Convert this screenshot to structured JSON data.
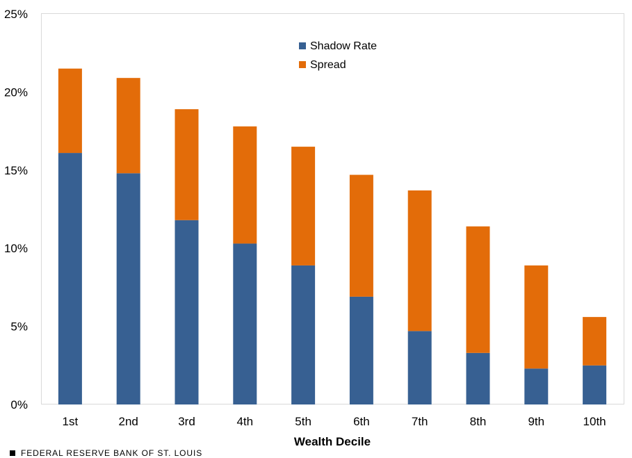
{
  "chart_data": {
    "type": "stacked-bar",
    "title": "",
    "xlabel": "Wealth Decile",
    "ylabel": "",
    "categories": [
      "1st",
      "2nd",
      "3rd",
      "4th",
      "5th",
      "6th",
      "7th",
      "8th",
      "9th",
      "10th"
    ],
    "series": [
      {
        "name": "Shadow Rate",
        "color": "#376092",
        "values": [
          16.1,
          14.8,
          11.8,
          10.3,
          8.9,
          6.9,
          4.7,
          3.3,
          2.3,
          2.5
        ]
      },
      {
        "name": "Spread",
        "color": "#E36C09",
        "values": [
          5.4,
          6.1,
          7.1,
          7.5,
          7.6,
          7.8,
          9.0,
          8.1,
          6.6,
          3.1
        ]
      }
    ],
    "ylim": [
      0,
      25
    ],
    "yticks": [
      0,
      5,
      10,
      15,
      20,
      25
    ],
    "ytick_labels": [
      "0%",
      "5%",
      "10%",
      "15%",
      "20%",
      "25%"
    ],
    "legend": "top-center",
    "grid": false
  },
  "footer": {
    "source": "FEDERAL RESERVE BANK OF ST. LOUIS"
  }
}
